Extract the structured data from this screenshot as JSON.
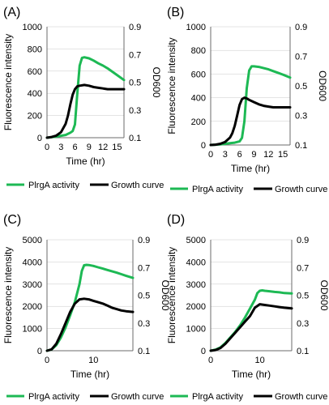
{
  "legend": {
    "activity_label": "PlrgA activity",
    "growth_label": "Growth curve"
  },
  "colors": {
    "activity": "#1db954",
    "growth": "#000000",
    "axis": "#6b6b6b",
    "grid": "#c8c8c8"
  },
  "chart_data": [
    {
      "panel_label": "(A)",
      "type": "line",
      "xlabel": "Time (hr)",
      "ylabel": "Fluorescence intensity",
      "y2label": "OD600",
      "xlim": [
        0,
        16.5
      ],
      "xticks": [
        "0",
        "3",
        "6",
        "9",
        "12",
        "15"
      ],
      "xtick_values": [
        0,
        3,
        6,
        9,
        12,
        15
      ],
      "ylim": [
        0,
        1000
      ],
      "yticks": [
        "0",
        "200",
        "400",
        "600",
        "800",
        "1000"
      ],
      "ytick_values": [
        0,
        200,
        400,
        600,
        800,
        1000
      ],
      "y2lim": [
        0.1,
        0.9
      ],
      "y2ticks": [
        "0.1",
        "0.3",
        "0.5",
        "0.7",
        "0.9"
      ],
      "y2tick_values": [
        0.1,
        0.3,
        0.5,
        0.7,
        0.9
      ],
      "series": [
        {
          "name": "PlrgA activity",
          "axis": "left",
          "x": [
            0,
            2,
            4,
            5,
            5.5,
            6,
            6.5,
            7,
            7.5,
            8,
            9,
            10,
            11,
            12,
            13,
            14,
            15,
            16.5
          ],
          "y": [
            0,
            10,
            25,
            45,
            60,
            120,
            400,
            650,
            720,
            725,
            715,
            695,
            670,
            650,
            625,
            595,
            565,
            520
          ]
        },
        {
          "name": "Growth curve",
          "axis": "right",
          "x": [
            0,
            1,
            2,
            3,
            4,
            4.5,
            5,
            5.5,
            6,
            6.5,
            7,
            8,
            9,
            10,
            11,
            12,
            13,
            14,
            16.5
          ],
          "y": [
            0.1,
            0.105,
            0.115,
            0.14,
            0.2,
            0.26,
            0.34,
            0.41,
            0.45,
            0.47,
            0.475,
            0.48,
            0.475,
            0.465,
            0.46,
            0.455,
            0.45,
            0.45,
            0.45
          ]
        }
      ]
    },
    {
      "panel_label": "(B)",
      "type": "line",
      "xlabel": "Time (hr)",
      "ylabel": "Fluorescence intensity",
      "y2label": "OD600",
      "xlim": [
        0,
        16.5
      ],
      "xticks": [
        "0",
        "3",
        "6",
        "9",
        "12",
        "15"
      ],
      "xtick_values": [
        0,
        3,
        6,
        9,
        12,
        15
      ],
      "ylim": [
        0,
        1000
      ],
      "yticks": [
        "0",
        "200",
        "400",
        "600",
        "800",
        "1000"
      ],
      "ytick_values": [
        0,
        200,
        400,
        600,
        800,
        1000
      ],
      "y2lim": [
        0.1,
        0.9
      ],
      "y2ticks": [
        "0.1",
        "0.3",
        "0.5",
        "0.7",
        "0.9"
      ],
      "y2tick_values": [
        0.1,
        0.3,
        0.5,
        0.7,
        0.9
      ],
      "series": [
        {
          "name": "PlrgA activity",
          "axis": "left",
          "x": [
            0,
            2,
            4,
            5,
            6,
            6.5,
            7,
            7.5,
            8,
            8.5,
            9,
            10,
            11,
            12,
            13,
            14,
            15,
            16.5
          ],
          "y": [
            0,
            5,
            15,
            20,
            30,
            60,
            200,
            480,
            630,
            665,
            665,
            660,
            650,
            640,
            625,
            610,
            595,
            570
          ]
        },
        {
          "name": "Growth curve",
          "axis": "right",
          "x": [
            0,
            1,
            2,
            3,
            4,
            4.5,
            5,
            5.5,
            6,
            6.5,
            7,
            7.5,
            8,
            9,
            10,
            11,
            12,
            13,
            14,
            16.5
          ],
          "y": [
            0.1,
            0.102,
            0.108,
            0.12,
            0.15,
            0.18,
            0.23,
            0.3,
            0.37,
            0.41,
            0.42,
            0.415,
            0.405,
            0.39,
            0.375,
            0.365,
            0.36,
            0.355,
            0.355,
            0.355
          ]
        }
      ]
    },
    {
      "panel_label": "(C)",
      "type": "line",
      "xlabel": "Time (hr)",
      "ylabel": "Fluorescence intensity",
      "y2label": "OD600",
      "xlim": [
        0,
        18.5
      ],
      "xticks": [
        "0",
        "10"
      ],
      "xtick_values": [
        0,
        10
      ],
      "ylim": [
        0,
        5000
      ],
      "yticks": [
        "0",
        "1000",
        "2000",
        "3000",
        "4000",
        "5000"
      ],
      "ytick_values": [
        0,
        1000,
        2000,
        3000,
        4000,
        5000
      ],
      "y2lim": [
        0.1,
        0.9
      ],
      "y2ticks": [
        "0.1",
        "0.3",
        "0.5",
        "0.7",
        "0.9"
      ],
      "y2tick_values": [
        0.1,
        0.3,
        0.5,
        0.7,
        0.9
      ],
      "series": [
        {
          "name": "PlrgA activity",
          "axis": "left",
          "x": [
            0,
            1,
            2,
            3,
            4,
            5,
            6,
            7,
            7.5,
            8,
            8.5,
            9,
            10,
            11,
            12,
            13,
            14,
            15,
            16,
            17,
            18.5
          ],
          "y": [
            0,
            60,
            250,
            600,
            1050,
            1600,
            2200,
            3000,
            3600,
            3850,
            3870,
            3860,
            3820,
            3760,
            3700,
            3640,
            3580,
            3520,
            3450,
            3380,
            3280
          ]
        },
        {
          "name": "Growth curve",
          "axis": "right",
          "x": [
            0,
            1,
            2,
            3,
            4,
            5,
            6,
            7,
            8,
            9,
            10,
            11,
            12,
            13,
            14,
            15,
            16,
            17,
            18.5
          ],
          "y": [
            0.1,
            0.11,
            0.15,
            0.22,
            0.3,
            0.38,
            0.44,
            0.47,
            0.475,
            0.47,
            0.46,
            0.45,
            0.44,
            0.425,
            0.41,
            0.4,
            0.39,
            0.385,
            0.38
          ]
        }
      ]
    },
    {
      "panel_label": "(D)",
      "type": "line",
      "xlabel": "Time (hr)",
      "ylabel": "Fluorescence intensity",
      "y2label": "OD600",
      "xlim": [
        0,
        16.5
      ],
      "xticks": [
        "0",
        "10"
      ],
      "xtick_values": [
        0,
        10
      ],
      "ylim": [
        0,
        5000
      ],
      "yticks": [
        "0",
        "1000",
        "2000",
        "3000",
        "4000",
        "5000"
      ],
      "ytick_values": [
        0,
        1000,
        2000,
        3000,
        4000,
        5000
      ],
      "y2lim": [
        0.1,
        0.9
      ],
      "y2ticks": [
        "0.1",
        "0.3",
        "0.5",
        "0.7",
        "0.9"
      ],
      "y2tick_values": [
        0.1,
        0.3,
        0.5,
        0.7,
        0.9
      ],
      "series": [
        {
          "name": "PlrgA activity",
          "axis": "left",
          "x": [
            0,
            1,
            2,
            3,
            4,
            5,
            6,
            7,
            8,
            9,
            9.5,
            10,
            10.5,
            11,
            12,
            13,
            14,
            15,
            16.5
          ],
          "y": [
            0,
            50,
            150,
            350,
            600,
            850,
            1150,
            1500,
            1900,
            2300,
            2600,
            2700,
            2720,
            2700,
            2680,
            2650,
            2630,
            2600,
            2580
          ]
        },
        {
          "name": "Growth curve",
          "axis": "right",
          "x": [
            0,
            1,
            2,
            3,
            4,
            5,
            6,
            7,
            8,
            9,
            10,
            11,
            12,
            13,
            14,
            15,
            16.5
          ],
          "y": [
            0.1,
            0.105,
            0.12,
            0.15,
            0.19,
            0.23,
            0.27,
            0.31,
            0.35,
            0.41,
            0.435,
            0.43,
            0.425,
            0.42,
            0.415,
            0.41,
            0.405
          ]
        }
      ]
    }
  ]
}
